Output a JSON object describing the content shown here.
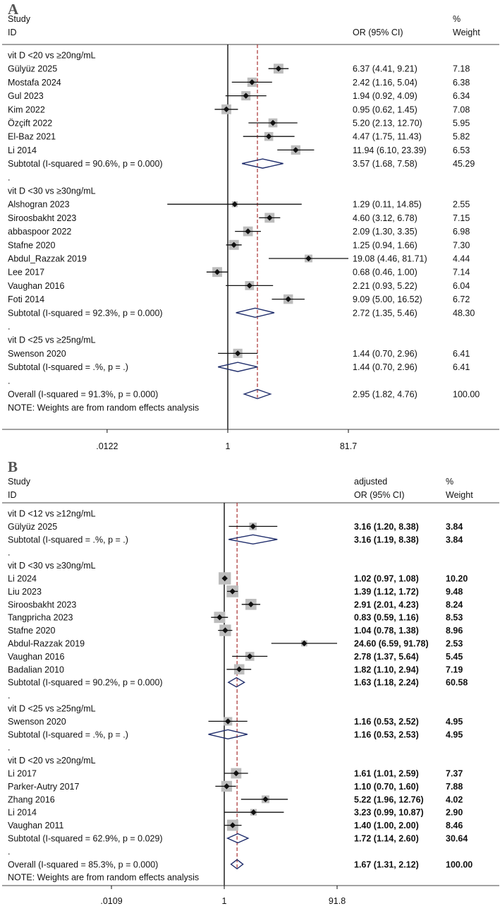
{
  "chart_data": [
    {
      "type": "forest",
      "panel_label": "A",
      "header": {
        "study": "Study",
        "id": "ID",
        "effect_line1": "",
        "effect_line2": "OR (95% CI)",
        "weight_line1": "%",
        "weight_line2": "Weight"
      },
      "scale": "log",
      "null_value": 1,
      "overall_estimate": 2.95,
      "x_ticks": [
        {
          "value": 0.0122,
          "label": ".0122"
        },
        {
          "value": 1,
          "label": "1"
        },
        {
          "value": 81.7,
          "label": "81.7"
        }
      ],
      "note": "NOTE: Weights are from random effects analysis",
      "groups": [
        {
          "label": "vit D <20 vs ≥20ng/mL",
          "studies": [
            {
              "name": "Gülyüz 2025",
              "or": 6.37,
              "lo": 4.41,
              "hi": 9.21,
              "ci_text": "6.37 (4.41, 9.21)",
              "weight": "7.18"
            },
            {
              "name": "Mostafa 2024",
              "or": 2.42,
              "lo": 1.16,
              "hi": 5.04,
              "ci_text": "2.42 (1.16, 5.04)",
              "weight": "6.38"
            },
            {
              "name": "Gul 2023",
              "or": 1.94,
              "lo": 0.92,
              "hi": 4.09,
              "ci_text": "1.94 (0.92, 4.09)",
              "weight": "6.34"
            },
            {
              "name": "Kim 2022",
              "or": 0.95,
              "lo": 0.62,
              "hi": 1.45,
              "ci_text": "0.95 (0.62, 1.45)",
              "weight": "7.08"
            },
            {
              "name": "Özçift 2022",
              "or": 5.2,
              "lo": 2.13,
              "hi": 12.7,
              "ci_text": "5.20 (2.13, 12.70)",
              "weight": "5.95"
            },
            {
              "name": "El-Baz 2021",
              "or": 4.47,
              "lo": 1.75,
              "hi": 11.43,
              "ci_text": "4.47 (1.75, 11.43)",
              "weight": "5.82"
            },
            {
              "name": "Li 2014",
              "or": 11.94,
              "lo": 6.1,
              "hi": 23.39,
              "ci_text": "11.94 (6.10, 23.39)",
              "weight": "6.53"
            }
          ],
          "subtotal": {
            "label": "Subtotal  (I-squared = 90.6%, p = 0.000)",
            "or": 3.57,
            "lo": 1.68,
            "hi": 7.58,
            "ci_text": "3.57 (1.68, 7.58)",
            "weight": "45.29"
          }
        },
        {
          "label": "vit D <30 vs ≥30ng/mL",
          "studies": [
            {
              "name": "Alshogran 2023",
              "or": 1.29,
              "lo": 0.11,
              "hi": 14.85,
              "ci_text": "1.29 (0.11, 14.85)",
              "weight": "2.55"
            },
            {
              "name": "Siroosbakht 2023",
              "or": 4.6,
              "lo": 3.12,
              "hi": 6.78,
              "ci_text": "4.60 (3.12, 6.78)",
              "weight": "7.15"
            },
            {
              "name": "abbaspoor 2022",
              "or": 2.09,
              "lo": 1.3,
              "hi": 3.35,
              "ci_text": "2.09 (1.30, 3.35)",
              "weight": "6.98"
            },
            {
              "name": "Stafne 2020",
              "or": 1.25,
              "lo": 0.94,
              "hi": 1.66,
              "ci_text": "1.25 (0.94, 1.66)",
              "weight": "7.30"
            },
            {
              "name": "Abdul_Razzak 2019",
              "or": 19.08,
              "lo": 4.46,
              "hi": 81.71,
              "ci_text": "19.08 (4.46, 81.71)",
              "weight": "4.44"
            },
            {
              "name": "Lee 2017",
              "or": 0.68,
              "lo": 0.46,
              "hi": 1.0,
              "ci_text": "0.68 (0.46, 1.00)",
              "weight": "7.14"
            },
            {
              "name": "Vaughan 2016",
              "or": 2.21,
              "lo": 0.93,
              "hi": 5.22,
              "ci_text": "2.21 (0.93, 5.22)",
              "weight": "6.04"
            },
            {
              "name": "Foti 2014",
              "or": 9.09,
              "lo": 5.0,
              "hi": 16.52,
              "ci_text": "9.09 (5.00, 16.52)",
              "weight": "6.72"
            }
          ],
          "subtotal": {
            "label": "Subtotal  (I-squared = 92.3%, p = 0.000)",
            "or": 2.72,
            "lo": 1.35,
            "hi": 5.46,
            "ci_text": "2.72 (1.35, 5.46)",
            "weight": "48.30"
          }
        },
        {
          "label": "vit D <25 vs ≥25ng/mL",
          "studies": [
            {
              "name": "Swenson 2020",
              "or": 1.44,
              "lo": 0.7,
              "hi": 2.96,
              "ci_text": "1.44 (0.70, 2.96)",
              "weight": "6.41"
            }
          ],
          "subtotal": {
            "label": "Subtotal  (I-squared = .%, p = .)",
            "or": 1.44,
            "lo": 0.7,
            "hi": 2.96,
            "ci_text": "1.44 (0.70, 2.96)",
            "weight": "6.41"
          }
        }
      ],
      "overall": {
        "label": "Overall  (I-squared = 91.3%, p = 0.000)",
        "or": 2.95,
        "lo": 1.82,
        "hi": 4.76,
        "ci_text": "2.95 (1.82, 4.76)",
        "weight": "100.00"
      }
    },
    {
      "type": "forest",
      "panel_label": "B",
      "header": {
        "study": "Study",
        "id": "ID",
        "effect_line1": "adjusted",
        "effect_line2": "OR (95% CI)",
        "weight_line1": "%",
        "weight_line2": "Weight"
      },
      "scale": "log",
      "null_value": 1,
      "overall_estimate": 1.67,
      "x_ticks": [
        {
          "value": 0.0109,
          "label": ".0109"
        },
        {
          "value": 1,
          "label": "1"
        },
        {
          "value": 91.8,
          "label": "91.8"
        }
      ],
      "note": "NOTE: Weights are from random effects analysis",
      "groups": [
        {
          "label": "vit D <12 vs ≥12ng/mL",
          "studies": [
            {
              "name": "Gülyüz 2025",
              "or": 3.16,
              "lo": 1.2,
              "hi": 8.38,
              "ci_text": "3.16 (1.20, 8.38)",
              "weight": "3.84"
            }
          ],
          "subtotal": {
            "label": "Subtotal  (I-squared = .%, p = .)",
            "or": 3.16,
            "lo": 1.19,
            "hi": 8.38,
            "ci_text": "3.16 (1.19, 8.38)",
            "weight": "3.84"
          }
        },
        {
          "label": "vit D <30 vs ≥30ng/mL",
          "studies": [
            {
              "name": "Li 2024",
              "or": 1.02,
              "lo": 0.97,
              "hi": 1.08,
              "ci_text": "1.02 (0.97, 1.08)",
              "weight": "10.20"
            },
            {
              "name": "Liu 2023",
              "or": 1.39,
              "lo": 1.12,
              "hi": 1.72,
              "ci_text": "1.39 (1.12, 1.72)",
              "weight": "9.48"
            },
            {
              "name": "Siroosbakht 2023",
              "or": 2.91,
              "lo": 2.01,
              "hi": 4.23,
              "ci_text": "2.91 (2.01, 4.23)",
              "weight": "8.24"
            },
            {
              "name": "Tangpricha 2023",
              "or": 0.83,
              "lo": 0.59,
              "hi": 1.16,
              "ci_text": "0.83 (0.59, 1.16)",
              "weight": "8.53"
            },
            {
              "name": "Stafne 2020",
              "or": 1.04,
              "lo": 0.78,
              "hi": 1.38,
              "ci_text": "1.04 (0.78, 1.38)",
              "weight": "8.96"
            },
            {
              "name": "Abdul-Razzak 2019",
              "or": 24.6,
              "lo": 6.59,
              "hi": 91.78,
              "ci_text": "24.60 (6.59, 91.78)",
              "weight": "2.53"
            },
            {
              "name": "Vaughan 2016",
              "or": 2.78,
              "lo": 1.37,
              "hi": 5.64,
              "ci_text": "2.78 (1.37, 5.64)",
              "weight": "5.45"
            },
            {
              "name": "Badalian 2010",
              "or": 1.82,
              "lo": 1.1,
              "hi": 2.94,
              "ci_text": "1.82 (1.10, 2.94)",
              "weight": "7.19"
            }
          ],
          "subtotal": {
            "label": "Subtotal  (I-squared = 90.2%, p = 0.000)",
            "or": 1.63,
            "lo": 1.18,
            "hi": 2.24,
            "ci_text": "1.63 (1.18, 2.24)",
            "weight": "60.58"
          }
        },
        {
          "label": "vit D <25 vs ≥25ng/mL",
          "studies": [
            {
              "name": "Swenson 2020",
              "or": 1.16,
              "lo": 0.53,
              "hi": 2.52,
              "ci_text": "1.16 (0.53, 2.52)",
              "weight": "4.95"
            }
          ],
          "subtotal": {
            "label": "Subtotal  (I-squared = .%, p = .)",
            "or": 1.16,
            "lo": 0.53,
            "hi": 2.53,
            "ci_text": "1.16 (0.53, 2.53)",
            "weight": "4.95"
          }
        },
        {
          "label": "vit D <20 vs ≥20ng/mL",
          "studies": [
            {
              "name": "Li 2017",
              "or": 1.61,
              "lo": 1.01,
              "hi": 2.59,
              "ci_text": "1.61 (1.01, 2.59)",
              "weight": "7.37"
            },
            {
              "name": "Parker-Autry 2017",
              "or": 1.1,
              "lo": 0.7,
              "hi": 1.6,
              "ci_text": "1.10 (0.70, 1.60)",
              "weight": "7.88"
            },
            {
              "name": "Zhang 2016",
              "or": 5.22,
              "lo": 1.96,
              "hi": 12.76,
              "ci_text": "5.22 (1.96, 12.76)",
              "weight": "4.02"
            },
            {
              "name": "Li 2014",
              "or": 3.23,
              "lo": 0.99,
              "hi": 10.87,
              "ci_text": "3.23 (0.99, 10.87)",
              "weight": "2.90"
            },
            {
              "name": "Vaughan 2011",
              "or": 1.4,
              "lo": 1.0,
              "hi": 2.0,
              "ci_text": "1.40 (1.00, 2.00)",
              "weight": "8.46"
            }
          ],
          "subtotal": {
            "label": "Subtotal  (I-squared = 62.9%, p = 0.029)",
            "or": 1.72,
            "lo": 1.14,
            "hi": 2.6,
            "ci_text": "1.72 (1.14, 2.60)",
            "weight": "30.64"
          }
        }
      ],
      "overall": {
        "label": "Overall  (I-squared = 85.3%, p = 0.000)",
        "or": 1.67,
        "lo": 1.31,
        "hi": 2.12,
        "ci_text": "1.67 (1.31, 2.12)",
        "weight": "100.00"
      }
    }
  ],
  "colors": {
    "axis": "#111111",
    "ref_line": "#a83232",
    "diamond": "#1f2d6b",
    "box": "#bdbdbd",
    "rule": "#444444"
  }
}
